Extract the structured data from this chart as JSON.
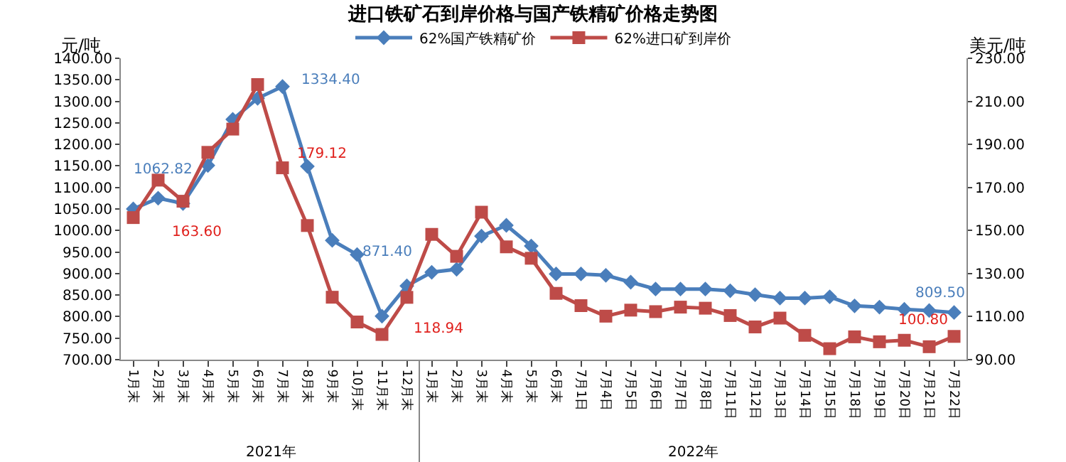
{
  "chart_data": {
    "type": "line",
    "title": "进口铁矿石到岸价格与国产铁精矿价格走势图",
    "ylabel": "元/吨",
    "y2label": "美元/吨",
    "categories": [
      "1月末",
      "2月末",
      "3月末",
      "4月末",
      "5月末",
      "6月末",
      "7月末",
      "8月末",
      "9月末",
      "10月末",
      "11月末",
      "12月末",
      "1月末",
      "2月末",
      "3月末",
      "4月末",
      "5月末",
      "6月末",
      "7月1日",
      "7月4日",
      "7月5日",
      "7月6日",
      "7月7日",
      "7月8日",
      "7月11日",
      "7月12日",
      "7月13日",
      "7月14日",
      "7月15日",
      "7月18日",
      "7月19日",
      "7月20日",
      "7月21日",
      "7月22日"
    ],
    "series": [
      {
        "name": "62%国产铁精矿价",
        "color": "#4a7ebb",
        "marker": "diamond",
        "values": [
          1050,
          1075,
          1062.82,
          1151,
          1258,
          1307,
          1334.4,
          1149,
          977,
          944,
          801,
          871.4,
          903,
          910,
          987,
          1012,
          964,
          899,
          899,
          896,
          880,
          864,
          864,
          864,
          860,
          851,
          843,
          843,
          846,
          825,
          822,
          817,
          814,
          809.5
        ],
        "value_labels": [
          null,
          null,
          "1062.82",
          null,
          null,
          null,
          "1334.40",
          null,
          null,
          null,
          null,
          "871.40",
          null,
          null,
          null,
          null,
          null,
          null,
          null,
          null,
          null,
          null,
          null,
          null,
          null,
          null,
          null,
          null,
          null,
          null,
          null,
          null,
          null,
          "809.50"
        ]
      },
      {
        "name": "62%进口矿到岸价",
        "color": "#be4b48",
        "marker": "square",
        "axis": "y2",
        "values": [
          156,
          173.4,
          163.6,
          186.3,
          197.1,
          217.8,
          179.12,
          152.3,
          119,
          107.5,
          101.7,
          118.94,
          148.2,
          138,
          158.5,
          142.4,
          137.1,
          120.8,
          115.1,
          110.2,
          113,
          112.3,
          114.4,
          113.9,
          110.5,
          105.2,
          109.3,
          101.3,
          95.1,
          100.6,
          98.3,
          99,
          96,
          100.8
        ],
        "value_labels": [
          null,
          null,
          "163.60",
          null,
          null,
          null,
          "179.12",
          null,
          null,
          null,
          null,
          "118.94",
          null,
          null,
          null,
          null,
          null,
          null,
          null,
          null,
          null,
          null,
          null,
          null,
          null,
          null,
          null,
          null,
          null,
          null,
          null,
          null,
          null,
          "100.80"
        ]
      }
    ],
    "ylim": [
      700,
      1400
    ],
    "yticks": [
      {
        "value": 700,
        "label": "700.00"
      },
      {
        "value": 750,
        "label": "750.00"
      },
      {
        "value": 800,
        "label": "800.00"
      },
      {
        "value": 850,
        "label": "850.00"
      },
      {
        "value": 900,
        "label": "900.00"
      },
      {
        "value": 950,
        "label": "950.00"
      },
      {
        "value": 1000,
        "label": "1000.00"
      },
      {
        "value": 1050,
        "label": "1050.00"
      },
      {
        "value": 1100,
        "label": "1100.00"
      },
      {
        "value": 1150,
        "label": "1150.00"
      },
      {
        "value": 1200,
        "label": "1200.00"
      },
      {
        "value": 1250,
        "label": "1250.00"
      },
      {
        "value": 1300,
        "label": "1300.00"
      },
      {
        "value": 1350,
        "label": "1350.00"
      },
      {
        "value": 1400,
        "label": "1400.00"
      }
    ],
    "y2lim": [
      90,
      230
    ],
    "y2ticks": [
      {
        "value": 90,
        "label": "90.00"
      },
      {
        "value": 110,
        "label": "110.00"
      },
      {
        "value": 130,
        "label": "130.00"
      },
      {
        "value": 150,
        "label": "150.00"
      },
      {
        "value": 170,
        "label": "170.00"
      },
      {
        "value": 190,
        "label": "190.00"
      },
      {
        "value": 210,
        "label": "210.00"
      },
      {
        "value": 230,
        "label": "230.00"
      }
    ],
    "annotations": [
      "2021年",
      "2022年"
    ],
    "legend": "top",
    "grid": false,
    "line_style": "solid"
  }
}
